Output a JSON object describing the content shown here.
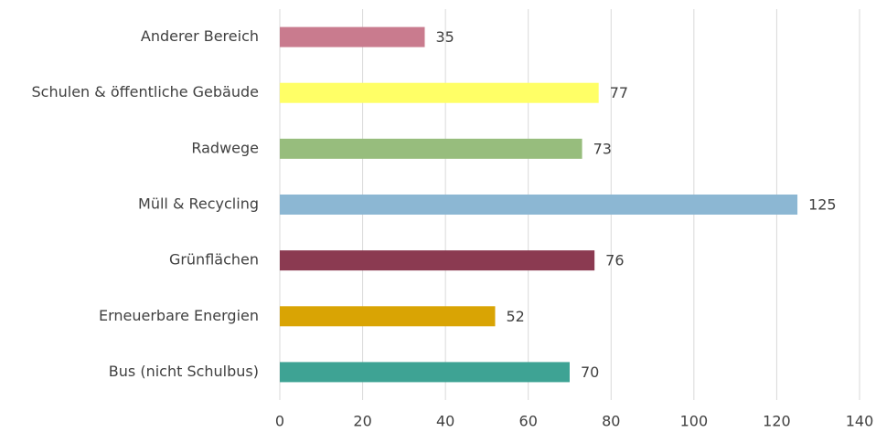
{
  "chart_data": {
    "type": "bar",
    "horizontal": true,
    "categories": [
      "Anderer Bereich",
      "Schulen & öffentliche Gebäude",
      "Radwege",
      "Müll & Recycling",
      "Grünflächen",
      "Erneuerbare Energien",
      "Bus (nicht Schulbus)"
    ],
    "values": [
      35,
      77,
      73,
      125,
      76,
      52,
      70
    ],
    "colors": [
      "#c97b8e",
      "#ffff66",
      "#97bd7d",
      "#8cb7d3",
      "#8b3a51",
      "#d9a404",
      "#3ea394"
    ],
    "xlim": [
      0,
      140
    ],
    "xticks": [
      0,
      20,
      40,
      60,
      80,
      100,
      120,
      140
    ],
    "grid": true,
    "data_labels": true
  }
}
